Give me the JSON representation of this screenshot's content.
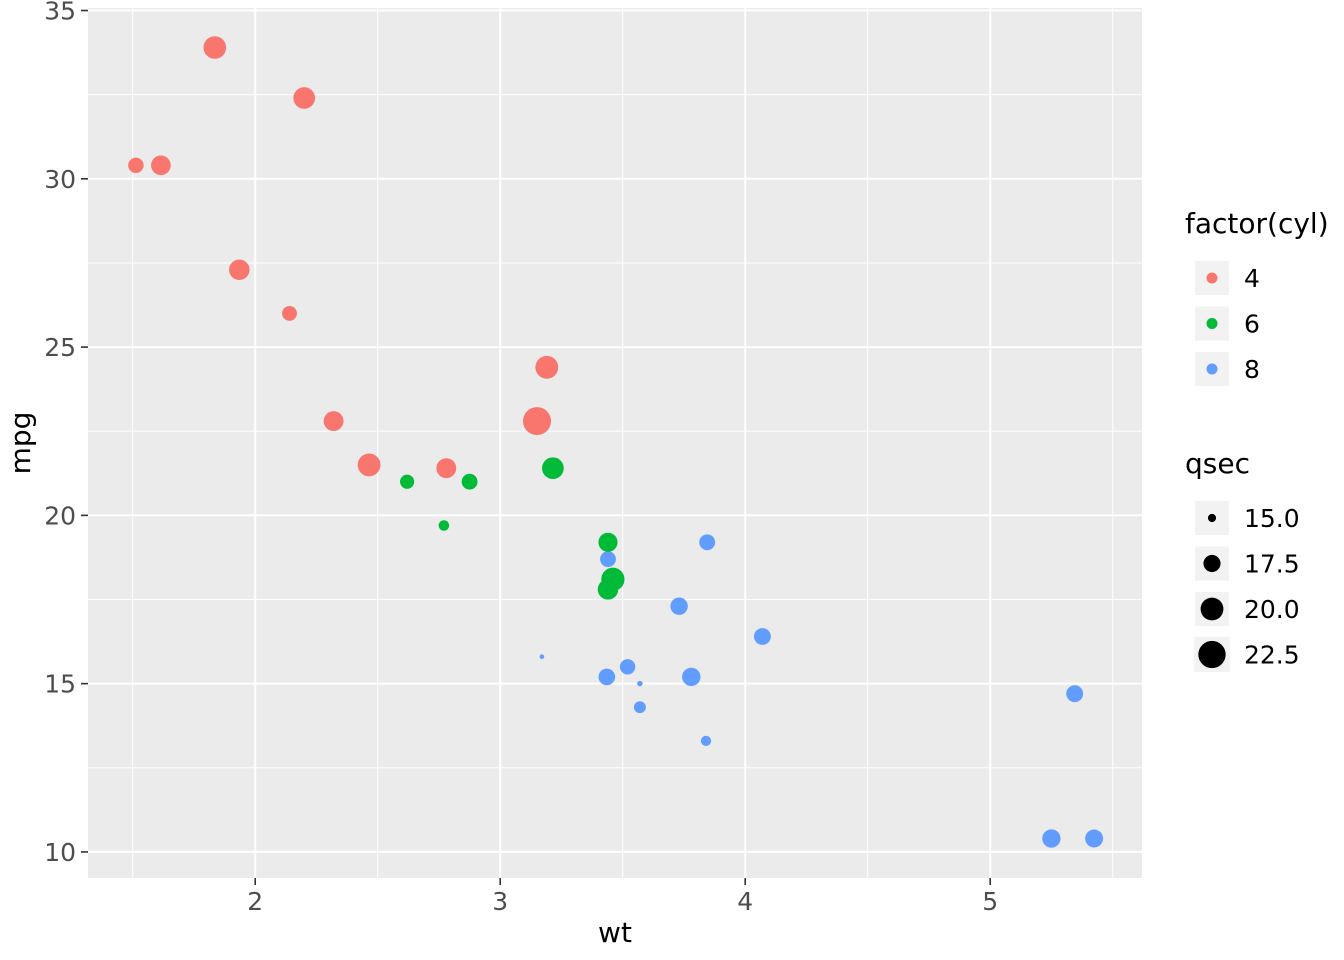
{
  "figure": {
    "background": "#FFFFFF",
    "panel_background": "#EBEBEB",
    "gridline_color": "#FFFFFF",
    "tick_color": "#333333",
    "tick_label_color": "#4D4D4D",
    "legend_key_background": "#F2F2F2",
    "size_key_point_color": "#000000"
  },
  "chart_data": {
    "type": "scatter",
    "title": "",
    "xlabel": "wt",
    "ylabel": "mpg",
    "x_domain": [
      1.3175,
      5.6196
    ],
    "y_domain": [
      9.225,
      35.075
    ],
    "grid": true,
    "x_ticks": [
      {
        "value": 2,
        "label": "2"
      },
      {
        "value": 3,
        "label": "3"
      },
      {
        "value": 4,
        "label": "4"
      },
      {
        "value": 5,
        "label": "5"
      }
    ],
    "x_minor_ticks": [
      1.5,
      2.5,
      3.5,
      4.5,
      5.5
    ],
    "y_ticks": [
      {
        "value": 10,
        "label": "10"
      },
      {
        "value": 15,
        "label": "15"
      },
      {
        "value": 20,
        "label": "20"
      },
      {
        "value": 25,
        "label": "25"
      },
      {
        "value": 30,
        "label": "30"
      },
      {
        "value": 35,
        "label": "35"
      }
    ],
    "y_minor_ticks": [
      12.5,
      17.5,
      22.5,
      27.5,
      32.5
    ],
    "color_legend": {
      "title": "factor(cyl)",
      "position": "right",
      "entries": [
        {
          "label": "4",
          "color": "#F8766D"
        },
        {
          "label": "6",
          "color": "#00BA38"
        },
        {
          "label": "8",
          "color": "#619CFF"
        }
      ]
    },
    "size_legend": {
      "title": "qsec",
      "position": "right",
      "entries": [
        {
          "label": "15.0",
          "value": 15.0
        },
        {
          "label": "17.5",
          "value": 17.5
        },
        {
          "label": "20.0",
          "value": 20.0
        },
        {
          "label": "22.5",
          "value": 22.5
        }
      ]
    },
    "points": [
      {
        "wt": 2.62,
        "mpg": 21.0,
        "cyl": "6",
        "qsec": 16.46
      },
      {
        "wt": 2.875,
        "mpg": 21.0,
        "cyl": "6",
        "qsec": 17.02
      },
      {
        "wt": 2.32,
        "mpg": 22.8,
        "cyl": "4",
        "qsec": 18.61
      },
      {
        "wt": 3.215,
        "mpg": 21.4,
        "cyl": "6",
        "qsec": 19.44
      },
      {
        "wt": 3.44,
        "mpg": 18.7,
        "cyl": "8",
        "qsec": 17.02
      },
      {
        "wt": 3.46,
        "mpg": 18.1,
        "cyl": "6",
        "qsec": 20.22
      },
      {
        "wt": 3.57,
        "mpg": 14.3,
        "cyl": "8",
        "qsec": 15.84
      },
      {
        "wt": 3.19,
        "mpg": 24.4,
        "cyl": "4",
        "qsec": 20.0
      },
      {
        "wt": 3.15,
        "mpg": 22.8,
        "cyl": "4",
        "qsec": 22.9
      },
      {
        "wt": 3.44,
        "mpg": 19.2,
        "cyl": "6",
        "qsec": 18.3
      },
      {
        "wt": 3.44,
        "mpg": 17.8,
        "cyl": "6",
        "qsec": 18.9
      },
      {
        "wt": 4.07,
        "mpg": 16.4,
        "cyl": "8",
        "qsec": 17.4
      },
      {
        "wt": 3.73,
        "mpg": 17.3,
        "cyl": "8",
        "qsec": 17.6
      },
      {
        "wt": 3.78,
        "mpg": 15.2,
        "cyl": "8",
        "qsec": 18.0
      },
      {
        "wt": 5.25,
        "mpg": 10.4,
        "cyl": "8",
        "qsec": 17.98
      },
      {
        "wt": 5.424,
        "mpg": 10.4,
        "cyl": "8",
        "qsec": 17.82
      },
      {
        "wt": 5.345,
        "mpg": 14.7,
        "cyl": "8",
        "qsec": 17.42
      },
      {
        "wt": 2.2,
        "mpg": 32.4,
        "cyl": "4",
        "qsec": 19.47
      },
      {
        "wt": 1.615,
        "mpg": 30.4,
        "cyl": "4",
        "qsec": 18.52
      },
      {
        "wt": 1.835,
        "mpg": 33.9,
        "cyl": "4",
        "qsec": 19.9
      },
      {
        "wt": 2.465,
        "mpg": 21.5,
        "cyl": "4",
        "qsec": 20.01
      },
      {
        "wt": 3.52,
        "mpg": 15.5,
        "cyl": "8",
        "qsec": 16.87
      },
      {
        "wt": 3.435,
        "mpg": 15.2,
        "cyl": "8",
        "qsec": 17.3
      },
      {
        "wt": 3.84,
        "mpg": 13.3,
        "cyl": "8",
        "qsec": 15.41
      },
      {
        "wt": 3.845,
        "mpg": 19.2,
        "cyl": "8",
        "qsec": 17.05
      },
      {
        "wt": 1.935,
        "mpg": 27.3,
        "cyl": "4",
        "qsec": 18.9
      },
      {
        "wt": 2.14,
        "mpg": 26.0,
        "cyl": "4",
        "qsec": 16.7
      },
      {
        "wt": 1.513,
        "mpg": 30.4,
        "cyl": "4",
        "qsec": 16.9
      },
      {
        "wt": 3.17,
        "mpg": 15.8,
        "cyl": "8",
        "qsec": 14.5
      },
      {
        "wt": 2.77,
        "mpg": 19.7,
        "cyl": "6",
        "qsec": 15.5
      },
      {
        "wt": 3.57,
        "mpg": 15.0,
        "cyl": "8",
        "qsec": 14.6
      },
      {
        "wt": 2.78,
        "mpg": 21.4,
        "cyl": "4",
        "qsec": 18.6
      }
    ]
  }
}
